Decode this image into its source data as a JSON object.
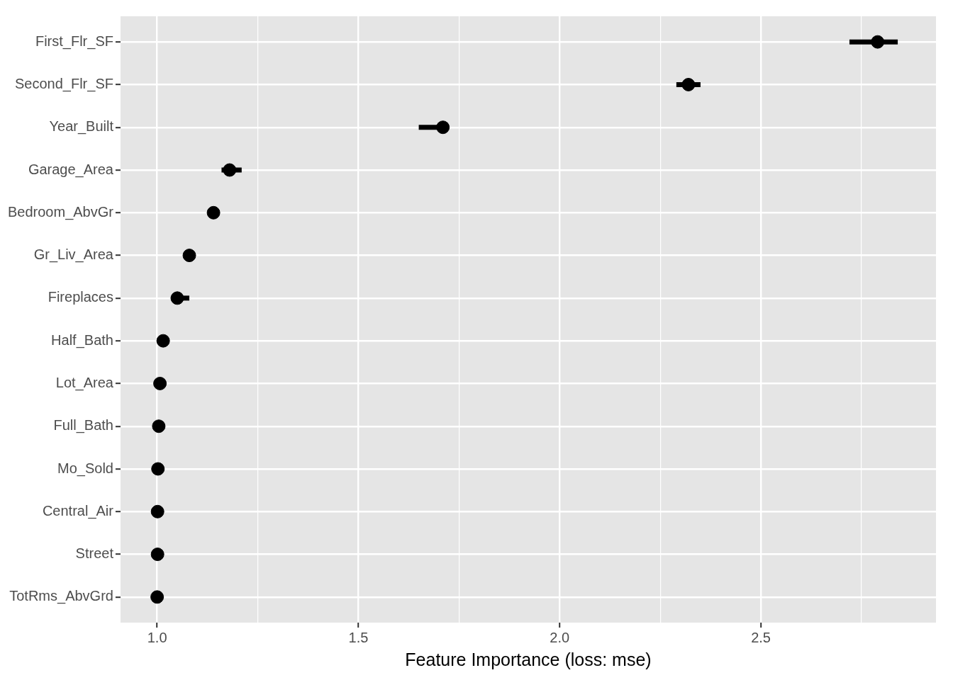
{
  "chart_data": {
    "type": "scatter",
    "xlabel": "Feature Importance (loss: mse)",
    "categories": [
      "First_Flr_SF",
      "Second_Flr_SF",
      "Year_Built",
      "Garage_Area",
      "Bedroom_AbvGr",
      "Gr_Liv_Area",
      "Fireplaces",
      "Half_Bath",
      "Lot_Area",
      "Full_Bath",
      "Mo_Sold",
      "Central_Air",
      "Street",
      "TotRms_AbvGrd"
    ],
    "series": [
      {
        "color": "#000000",
        "values": [
          2.79,
          2.32,
          1.71,
          1.18,
          1.14,
          1.08,
          1.05,
          1.015,
          1.007,
          1.004,
          1.002,
          1.001,
          1.001,
          1.0
        ],
        "errors": [
          [
            2.72,
            2.84
          ],
          [
            2.29,
            2.35
          ],
          [
            1.65,
            1.72
          ],
          [
            1.16,
            1.21
          ],
          null,
          null,
          [
            1.04,
            1.08
          ],
          null,
          null,
          null,
          null,
          null,
          null,
          null
        ]
      }
    ],
    "orientation": "horizontal",
    "xlim": [
      0.909,
      2.935
    ],
    "xticks": [
      {
        "value": 1.0,
        "label": "1.0"
      },
      {
        "value": 1.25,
        "label": null
      },
      {
        "value": 1.5,
        "label": "1.5"
      },
      {
        "value": 1.75,
        "label": null
      },
      {
        "value": 2.0,
        "label": "2.0"
      },
      {
        "value": 2.25,
        "label": null
      },
      {
        "value": 2.5,
        "label": "2.5"
      },
      {
        "value": 2.75,
        "label": null
      }
    ],
    "grid": true,
    "legend": false,
    "marker": "circle"
  }
}
